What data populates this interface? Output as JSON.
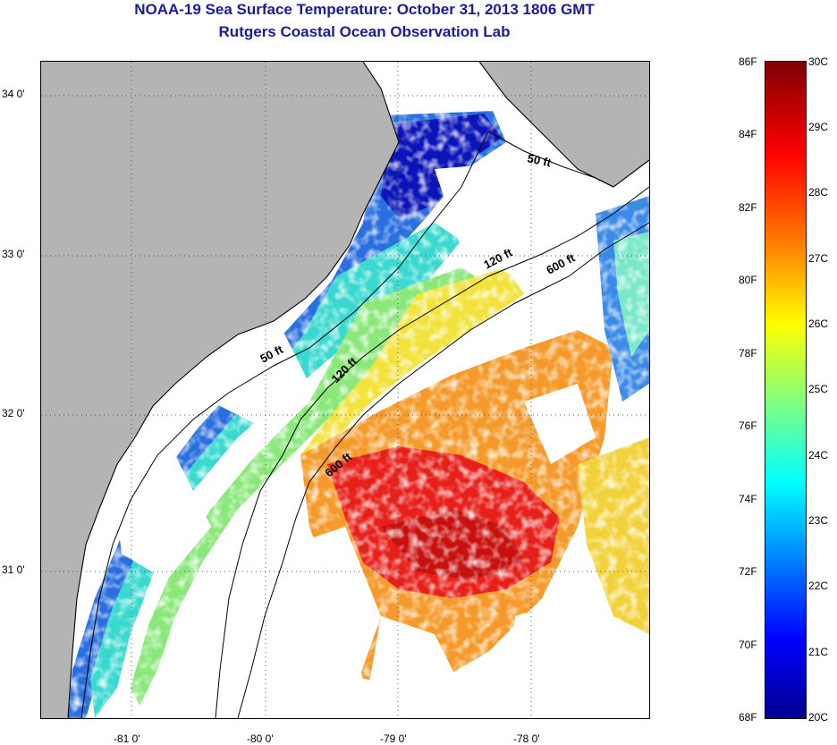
{
  "title_line1": "NOAA-19 Sea Surface Temperature:  October 31, 2013 1806 GMT",
  "title_line2": "Rutgers Coastal Ocean Observation Lab",
  "map": {
    "lat_labels": [
      "34 0'",
      "33 0'",
      "32 0'",
      "31 0'"
    ],
    "lon_labels": [
      "-81 0'",
      "-80 0'",
      "-79 0'",
      "-78 0'"
    ],
    "isobath_labels": [
      "50 ft",
      "120 ft",
      "600 ft",
      "50 ft",
      "120 ft",
      "600 ft"
    ],
    "colors": {
      "land": "#b4b4b4",
      "cloud_nodata": "#ffffff",
      "warm_core": "#e8201a",
      "cold_nearshore": "#0a14c8"
    }
  },
  "colorbar": {
    "fahrenheit_labels": [
      "86F",
      "84F",
      "82F",
      "80F",
      "78F",
      "76F",
      "74F",
      "72F",
      "70F",
      "68F"
    ],
    "celsius_labels": [
      "30C",
      "29C",
      "28C",
      "27C",
      "26C",
      "25C",
      "24C",
      "23C",
      "22C",
      "21C",
      "20C"
    ]
  }
}
